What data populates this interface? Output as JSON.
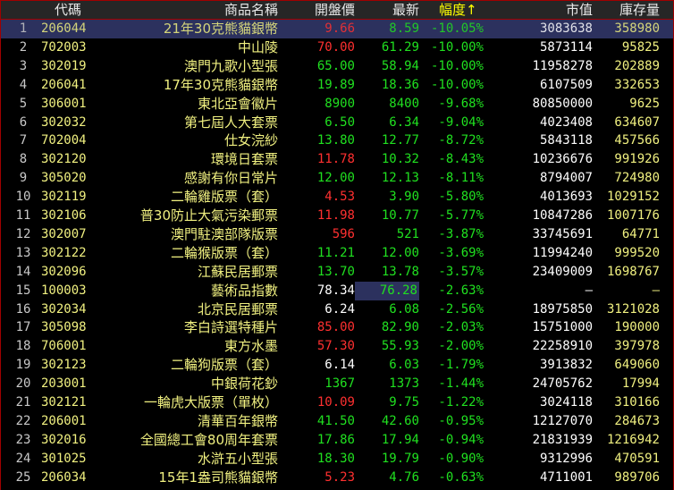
{
  "header": {
    "code": "代碼",
    "name": "商品名稱",
    "open": "開盤價",
    "last": "最新",
    "pct": "幅度↑",
    "mv": "市值",
    "inv": "庫存量"
  },
  "colors": {
    "up": "#ff3030",
    "down": "#20e020",
    "flat": "#ffffff",
    "selected_bg": "#2c315e"
  },
  "selected_row": 1,
  "rows": [
    {
      "n": "1",
      "code": "206044",
      "name": "21年30克熊貓銀幣",
      "open": "9.66",
      "dir": "up",
      "last": "8.59",
      "pct": "-10.05%",
      "mv": "3083638",
      "inv": "358980"
    },
    {
      "n": "2",
      "code": "702003",
      "name": "中山陵",
      "open": "70.00",
      "dir": "up",
      "last": "61.29",
      "pct": "-10.00%",
      "mv": "5873114",
      "inv": "95825"
    },
    {
      "n": "3",
      "code": "302019",
      "name": "澳門九歌小型張",
      "open": "65.00",
      "dir": "down",
      "last": "58.94",
      "pct": "-10.00%",
      "mv": "11958278",
      "inv": "202889"
    },
    {
      "n": "4",
      "code": "206041",
      "name": "17年30克熊貓銀幣",
      "open": "19.89",
      "dir": "down",
      "last": "18.36",
      "pct": "-10.00%",
      "mv": "6107509",
      "inv": "332653"
    },
    {
      "n": "5",
      "code": "306001",
      "name": "東北亞會徽片",
      "open": "8900",
      "dir": "down",
      "last": "8400",
      "pct": "-9.68%",
      "mv": "80850000",
      "inv": "9625"
    },
    {
      "n": "6",
      "code": "302032",
      "name": "第七屆人大套票",
      "open": "6.50",
      "dir": "down",
      "last": "6.34",
      "pct": "-9.04%",
      "mv": "4023408",
      "inv": "634607"
    },
    {
      "n": "7",
      "code": "702004",
      "name": "仕女浣紗",
      "open": "13.80",
      "dir": "down",
      "last": "12.77",
      "pct": "-8.72%",
      "mv": "5843118",
      "inv": "457566"
    },
    {
      "n": "8",
      "code": "302120",
      "name": "環境日套票",
      "open": "11.78",
      "dir": "up",
      "last": "10.32",
      "pct": "-8.43%",
      "mv": "10236676",
      "inv": "991926"
    },
    {
      "n": "9",
      "code": "305020",
      "name": "感謝有你日常片",
      "open": "12.00",
      "dir": "down",
      "last": "12.13",
      "pct": "-8.11%",
      "mv": "8794007",
      "inv": "724980"
    },
    {
      "n": "10",
      "code": "302119",
      "name": "二輪雞版票（套）",
      "open": "4.53",
      "dir": "up",
      "last": "3.90",
      "pct": "-5.80%",
      "mv": "4013693",
      "inv": "1029152"
    },
    {
      "n": "11",
      "code": "302106",
      "name": "普30防止大氣污染郵票",
      "open": "11.98",
      "dir": "up",
      "last": "10.77",
      "pct": "-5.77%",
      "mv": "10847286",
      "inv": "1007176"
    },
    {
      "n": "12",
      "code": "302007",
      "name": "澳門駐澳部隊版票",
      "open": "596",
      "dir": "up",
      "last": "521",
      "pct": "-3.87%",
      "mv": "33745691",
      "inv": "64771"
    },
    {
      "n": "13",
      "code": "302122",
      "name": "二輪猴版票（套）",
      "open": "11.21",
      "dir": "down",
      "last": "12.00",
      "pct": "-3.69%",
      "mv": "11994240",
      "inv": "999520"
    },
    {
      "n": "14",
      "code": "302096",
      "name": "江蘇民居郵票",
      "open": "13.70",
      "dir": "down",
      "last": "13.78",
      "pct": "-3.57%",
      "mv": "23409009",
      "inv": "1698767"
    },
    {
      "n": "15",
      "code": "100003",
      "name": "藝術品指數",
      "open": "78.34",
      "dir": "flat",
      "last": "76.28",
      "pct": "-2.63%",
      "mv": "—",
      "inv": "—"
    },
    {
      "n": "16",
      "code": "302034",
      "name": "北京民居郵票",
      "open": "6.24",
      "dir": "flat",
      "last": "6.08",
      "pct": "-2.56%",
      "mv": "18975850",
      "inv": "3121028"
    },
    {
      "n": "17",
      "code": "305098",
      "name": "李白詩選特種片",
      "open": "85.00",
      "dir": "up",
      "last": "82.90",
      "pct": "-2.03%",
      "mv": "15751000",
      "inv": "190000"
    },
    {
      "n": "18",
      "code": "706001",
      "name": "東方水墨",
      "open": "57.30",
      "dir": "up",
      "last": "55.93",
      "pct": "-2.00%",
      "mv": "22258910",
      "inv": "397978"
    },
    {
      "n": "19",
      "code": "302123",
      "name": "二輪狗版票（套）",
      "open": "6.14",
      "dir": "flat",
      "last": "6.03",
      "pct": "-1.79%",
      "mv": "3913832",
      "inv": "649060"
    },
    {
      "n": "20",
      "code": "203001",
      "name": "中銀荷花鈔",
      "open": "1367",
      "dir": "down",
      "last": "1373",
      "pct": "-1.44%",
      "mv": "24705762",
      "inv": "17994"
    },
    {
      "n": "21",
      "code": "302121",
      "name": "一輪虎大版票（單枚）",
      "open": "10.09",
      "dir": "up",
      "last": "9.75",
      "pct": "-1.22%",
      "mv": "3024118",
      "inv": "310166"
    },
    {
      "n": "22",
      "code": "206001",
      "name": "清華百年銀幣",
      "open": "41.50",
      "dir": "down",
      "last": "42.60",
      "pct": "-0.95%",
      "mv": "12127070",
      "inv": "284673"
    },
    {
      "n": "23",
      "code": "302016",
      "name": "全國總工會80周年套票",
      "open": "17.86",
      "dir": "down",
      "last": "17.94",
      "pct": "-0.94%",
      "mv": "21831939",
      "inv": "1216942"
    },
    {
      "n": "24",
      "code": "301025",
      "name": "水滸五小型張",
      "open": "18.30",
      "dir": "down",
      "last": "19.79",
      "pct": "-0.90%",
      "mv": "9312996",
      "inv": "470591"
    },
    {
      "n": "25",
      "code": "206034",
      "name": "15年1盎司熊貓銀幣",
      "open": "5.23",
      "dir": "up",
      "last": "4.76",
      "pct": "-0.63%",
      "mv": "4711001",
      "inv": "989706"
    }
  ]
}
